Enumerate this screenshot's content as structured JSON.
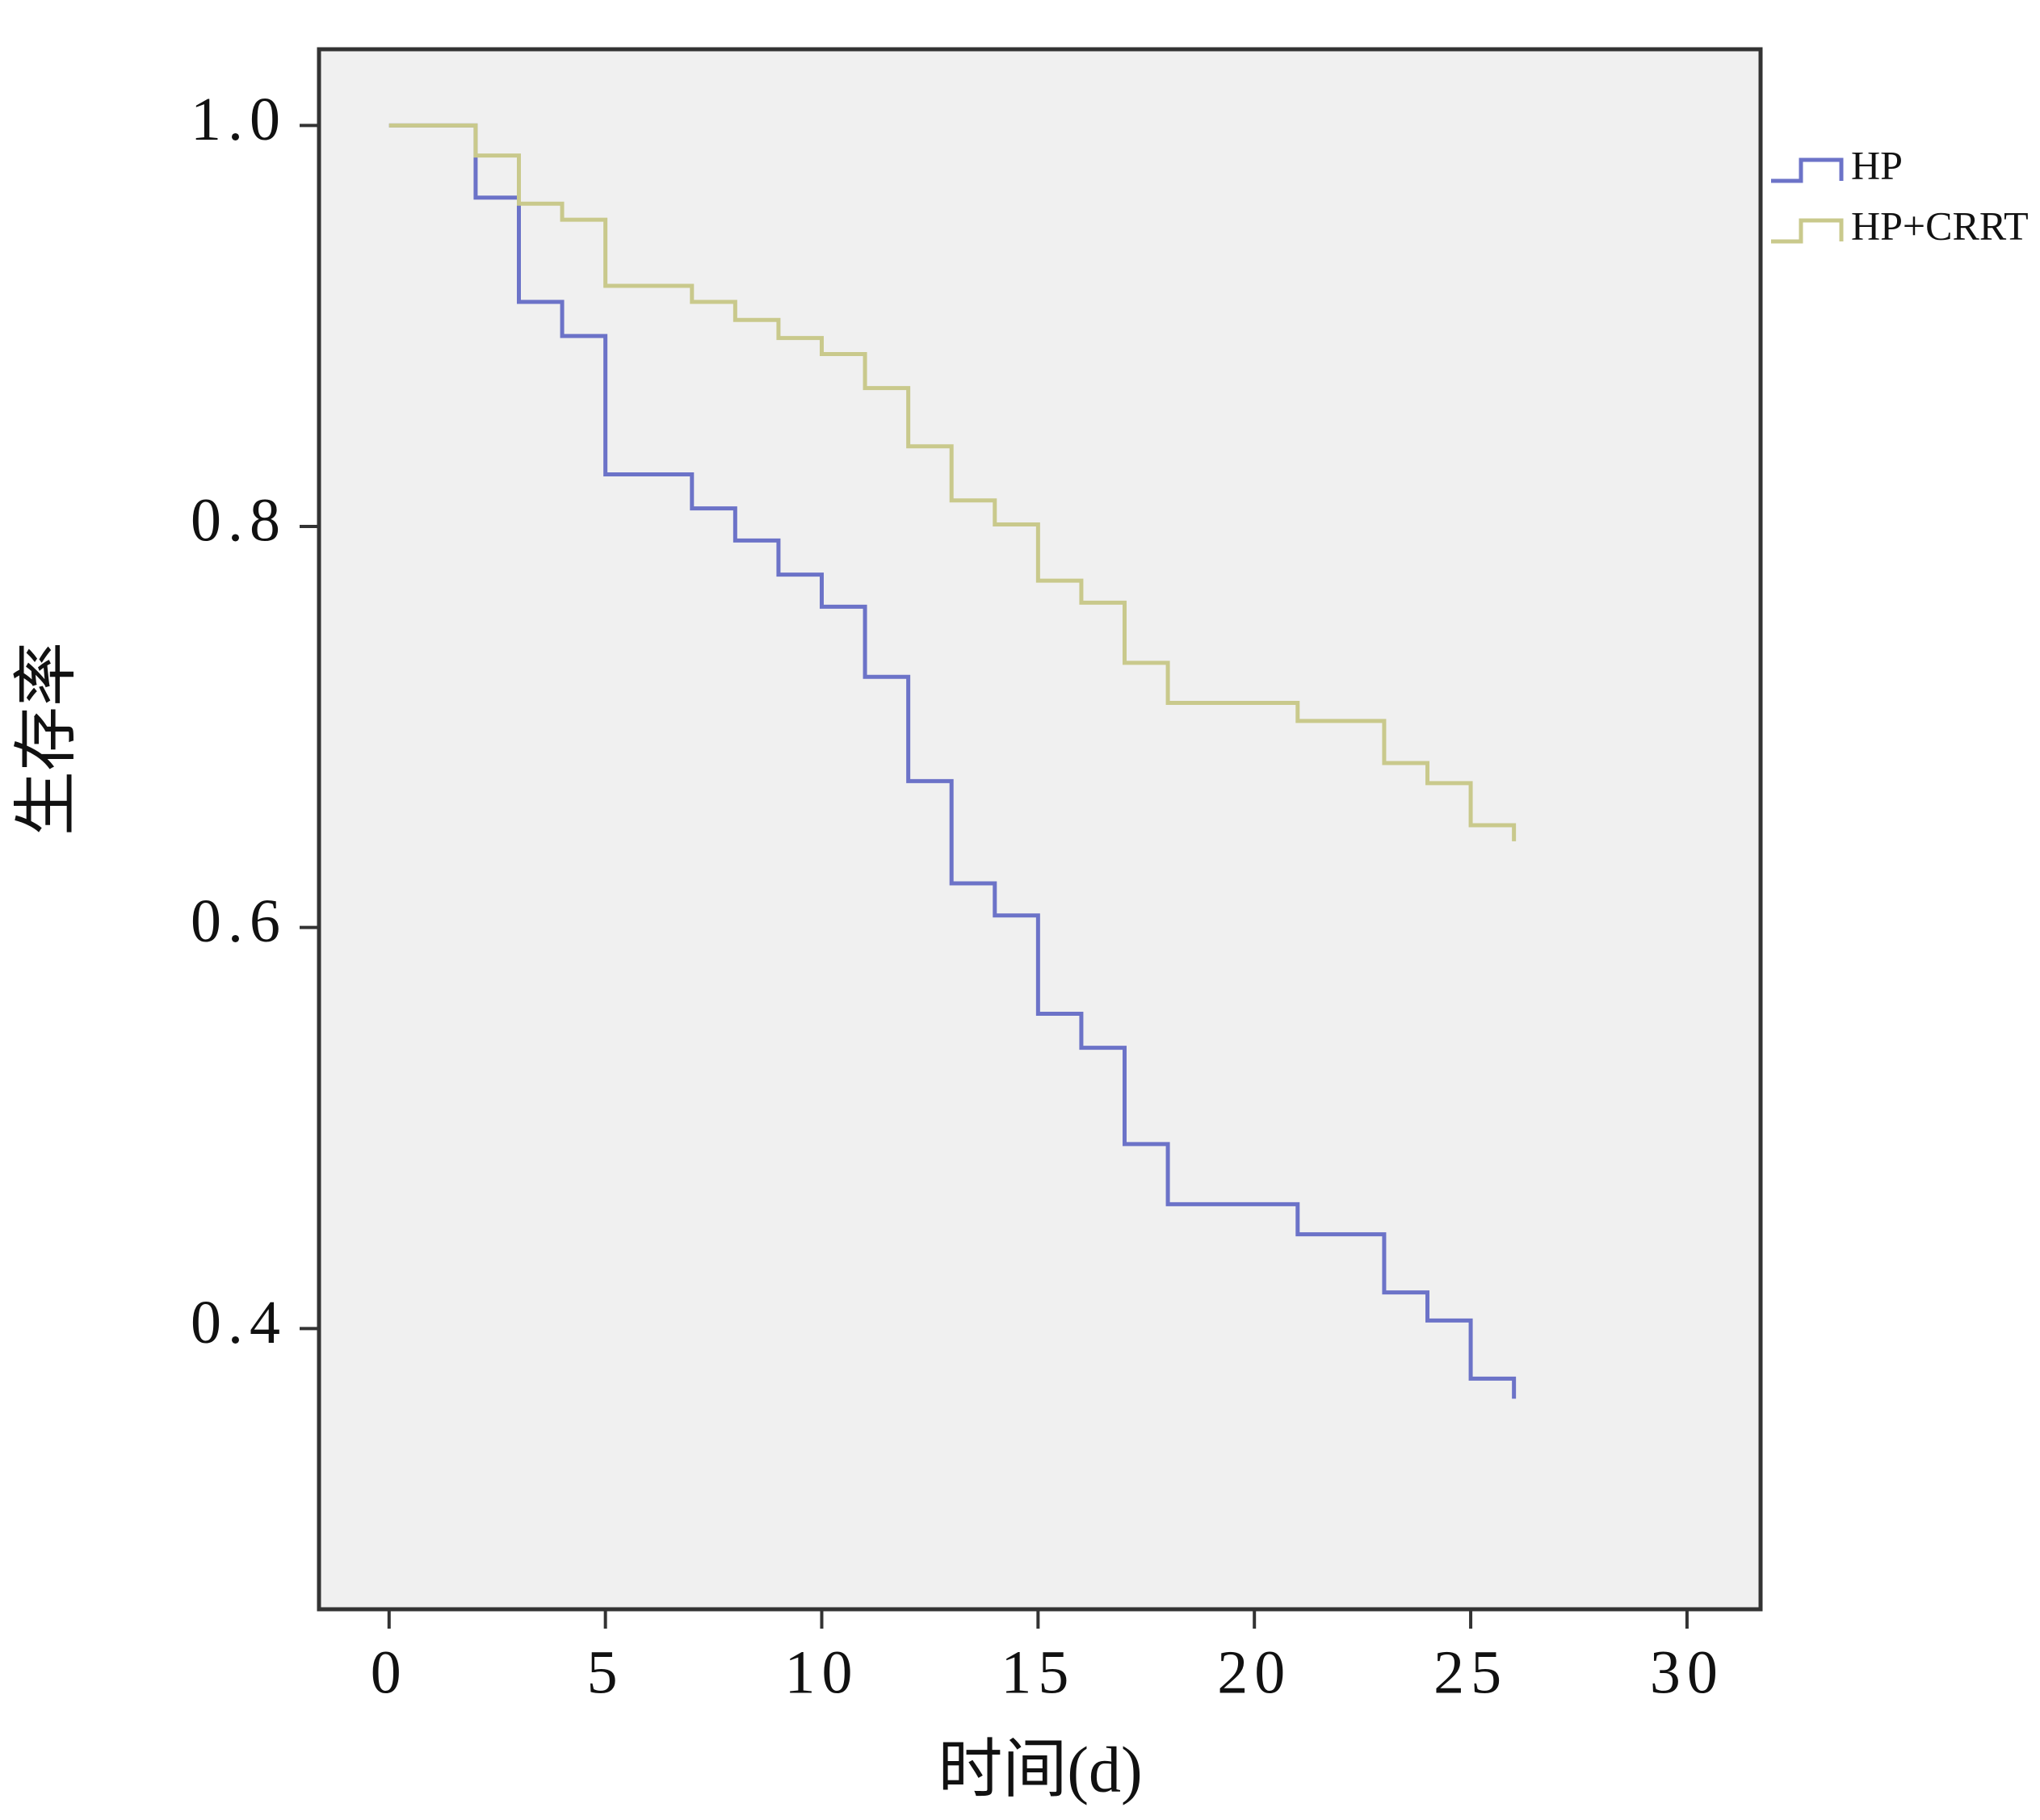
{
  "chart_data": {
    "type": "line",
    "step": "post",
    "x_label": "时间(d)",
    "y_label": "生存率",
    "x": [
      0,
      2,
      3,
      4,
      5,
      7,
      8,
      9,
      10,
      11,
      12,
      13,
      14,
      15,
      16,
      17,
      18,
      21,
      23,
      24,
      25,
      26
    ],
    "series": [
      {
        "name": "HP",
        "color": "#6c73c8",
        "values": [
          1.0,
          0.964,
          0.912,
          0.895,
          0.826,
          0.809,
          0.793,
          0.776,
          0.76,
          0.725,
          0.673,
          0.622,
          0.606,
          0.557,
          0.54,
          0.492,
          0.462,
          0.447,
          0.418,
          0.404,
          0.375,
          0.365
        ]
      },
      {
        "name": "HP+CRRT",
        "color": "#c9c98c",
        "values": [
          1.0,
          0.985,
          0.961,
          0.953,
          0.92,
          0.912,
          0.903,
          0.894,
          0.886,
          0.869,
          0.84,
          0.813,
          0.801,
          0.773,
          0.762,
          0.732,
          0.712,
          0.703,
          0.682,
          0.672,
          0.651,
          0.643
        ]
      }
    ],
    "xlim": [
      -1.62,
      31.7
    ],
    "xticks": [
      0,
      5,
      10,
      15,
      20,
      25,
      30
    ],
    "ylim": [
      0.26,
      1.038
    ],
    "yticks": [
      {
        "value": 0.4,
        "label": "0.4"
      },
      {
        "value": 0.6,
        "label": "0.6"
      },
      {
        "value": 0.8,
        "label": "0.8"
      },
      {
        "value": 1,
        "label": "1.0"
      }
    ],
    "plot_background": "#f0f0f0"
  }
}
